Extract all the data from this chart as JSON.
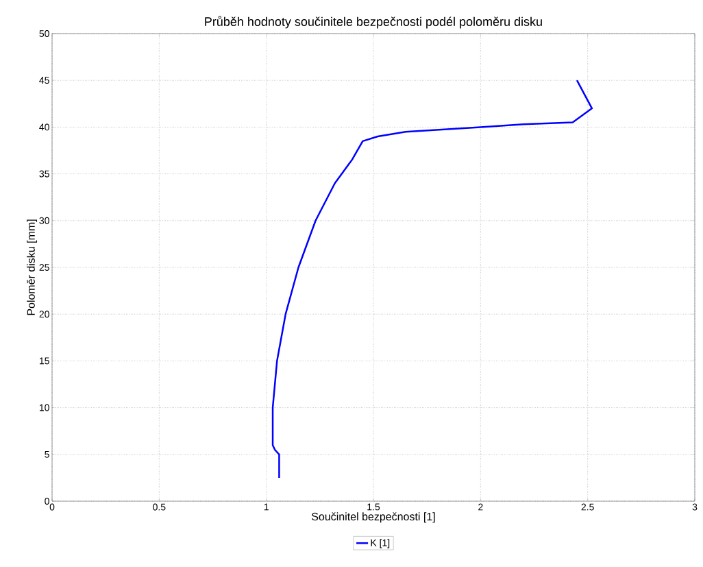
{
  "chart_data": {
    "type": "line",
    "title": "Průběh hodnoty součinitele bezpečnosti podél poloměru disku",
    "xlabel": "Součinitel bezpečnosti [1]",
    "ylabel": "Poloměr disku [mm]",
    "xlim": [
      0,
      3
    ],
    "ylim": [
      0,
      50
    ],
    "xticks": [
      0,
      0.5,
      1,
      1.5,
      2,
      2.5,
      3
    ],
    "yticks": [
      0,
      5,
      10,
      15,
      20,
      25,
      30,
      35,
      40,
      45,
      50
    ],
    "grid": true,
    "legend": "bottom",
    "series": [
      {
        "name": "K [1]",
        "color": "#0000ff",
        "x": [
          1.06,
          1.06,
          1.04,
          1.03,
          1.03,
          1.05,
          1.09,
          1.15,
          1.23,
          1.32,
          1.4,
          1.45,
          1.52,
          1.65,
          2.0,
          2.2,
          2.43,
          2.52,
          2.45
        ],
        "values": [
          2.5,
          5,
          5.5,
          6,
          10,
          15,
          20,
          25,
          30,
          34,
          36.5,
          38.5,
          39,
          39.5,
          40,
          40.3,
          40.5,
          42,
          45
        ]
      }
    ]
  }
}
